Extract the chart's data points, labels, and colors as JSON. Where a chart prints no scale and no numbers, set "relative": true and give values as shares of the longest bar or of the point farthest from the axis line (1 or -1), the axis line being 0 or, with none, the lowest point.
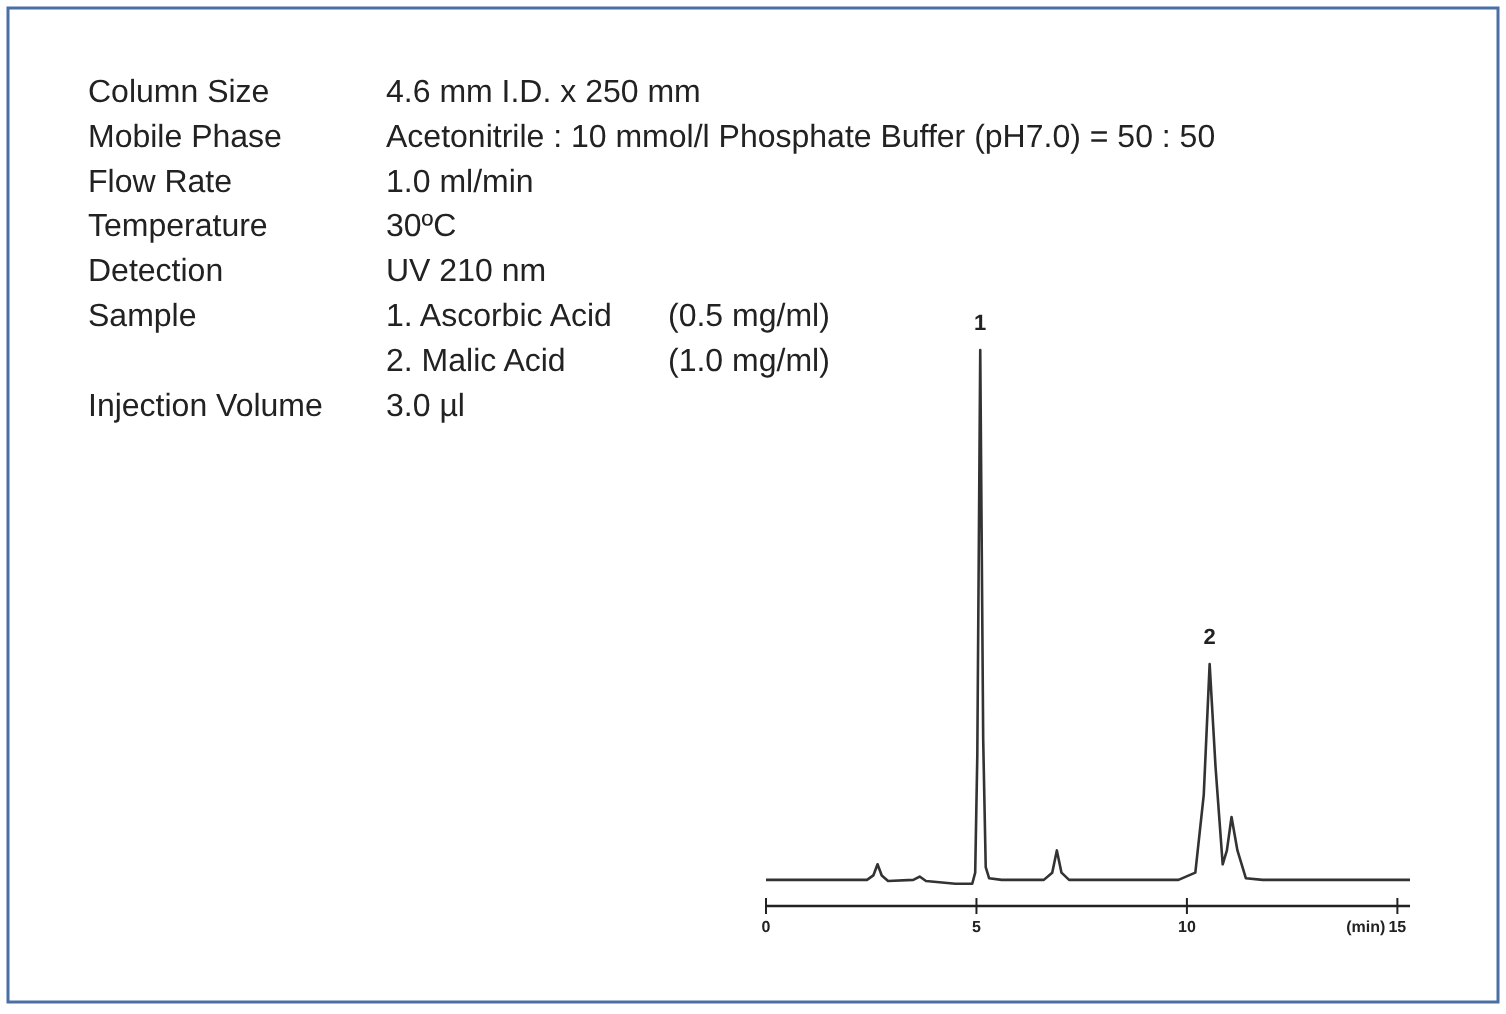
{
  "chart_data": {
    "type": "line",
    "relative": true,
    "xlabel": "(min)",
    "xlim": [
      0,
      15.3
    ],
    "xticks": [
      0,
      5,
      10,
      15
    ],
    "series": [
      {
        "color": "#333333",
        "x": [
          0,
          1.0,
          2.4,
          2.55,
          2.65,
          2.75,
          2.9,
          3.5,
          3.65,
          3.8,
          4.5,
          4.9,
          4.97,
          5.02,
          5.09,
          5.16,
          5.22,
          5.3,
          5.6,
          6.6,
          6.8,
          6.91,
          7.02,
          7.2,
          7.8,
          9.8,
          10.2,
          10.4,
          10.54,
          10.68,
          10.85,
          10.95,
          11.06,
          11.2,
          11.4,
          11.8,
          13,
          14.4,
          15.3
        ],
        "values": [
          0.047,
          0.047,
          0.047,
          0.055,
          0.075,
          0.055,
          0.045,
          0.047,
          0.053,
          0.045,
          0.04,
          0.04,
          0.06,
          0.27,
          1,
          0.3,
          0.07,
          0.05,
          0.047,
          0.047,
          0.06,
          0.1,
          0.06,
          0.047,
          0.047,
          0.047,
          0.06,
          0.2,
          0.435,
          0.25,
          0.075,
          0.1,
          0.16,
          0.1,
          0.05,
          0.047,
          0.047,
          0.047,
          0.047
        ]
      }
    ],
    "annotations": [
      {
        "text": "1",
        "x": 5.09,
        "y": 1
      },
      {
        "text": "2",
        "x": 10.54,
        "y": 0.435
      },
      "Column Size",
      "4.6 mm I.D. x 250 mm",
      "Mobile Phase",
      "Acetonitrile : 10 mmol/l Phosphate Buffer (pH7.0) = 50 : 50",
      "Flow Rate",
      "1.0 ml/min",
      "Temperature",
      "30ºC",
      "Detection",
      "UV 210 nm",
      "Sample",
      "1. Ascorbic Acid",
      "(0.5 mg/ml)",
      "2. Malic Acid",
      "(1.0 mg/ml)",
      "Injection Volume",
      "3.0 µl"
    ]
  }
}
